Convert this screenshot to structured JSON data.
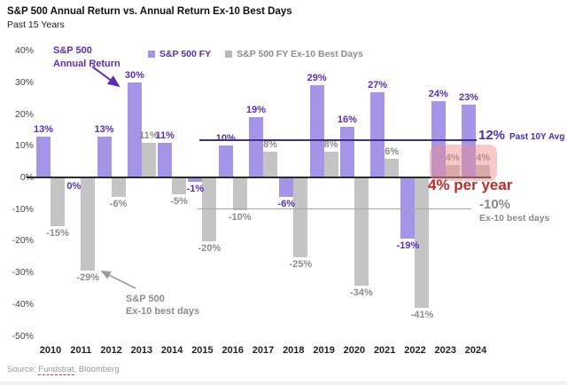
{
  "title": "S&P 500 Annual Return vs. Annual Return Ex-10 Best Days",
  "subtitle": "Past 15 Years",
  "legend": {
    "items": [
      {
        "label": "S&P 500 FY",
        "color": "#a694e8"
      },
      {
        "label": "S&P 500 FY Ex-10 Best Days",
        "color": "#b9b9b9"
      }
    ]
  },
  "chart_data": {
    "type": "bar",
    "categories": [
      "2010",
      "2011",
      "2012",
      "2013",
      "2014",
      "2015",
      "2016",
      "2017",
      "2018",
      "2019",
      "2020",
      "2021",
      "2022",
      "2023",
      "2024"
    ],
    "series": [
      {
        "name": "S&P 500 FY",
        "color": "#a694e8",
        "label_color": "#5c2cb8",
        "values": [
          13,
          0,
          13,
          30,
          11,
          -1,
          10,
          19,
          -6,
          29,
          16,
          27,
          -19,
          24,
          23
        ]
      },
      {
        "name": "S&P 500 FY Ex-10 Best Days",
        "color": "#c4c4c4",
        "label_color": "#8c8c8c",
        "values": [
          -15,
          -29,
          -6,
          11,
          -5,
          -20,
          -10,
          8,
          -25,
          8,
          -34,
          6,
          -41,
          4,
          4
        ]
      }
    ],
    "title": "S&P 500 Annual Return vs. Annual Return Ex-10 Best Days",
    "xlabel": "",
    "ylabel": "",
    "ylim": [
      -50,
      40
    ],
    "yticks": [
      40,
      30,
      20,
      10,
      0,
      -10,
      -20,
      -30,
      -40,
      -50
    ],
    "ytick_suffix": "%",
    "grid": false,
    "legend_position": "top",
    "avg_line": {
      "value": 12,
      "label": "12%",
      "sublabel": "Past 10Y Avg",
      "color": "#3e3188"
    },
    "ex10_line": {
      "value": -10,
      "label": "-10%",
      "sublabel": "Ex-10 best days",
      "color": "#a6a6a6"
    }
  },
  "annotations": {
    "sp500": {
      "line1": "S&P 500",
      "line2": "Annual Return"
    },
    "ex10": {
      "line1": "S&P 500",
      "line2": "Ex-10 best days"
    },
    "per_year": "4% per year"
  },
  "colors": {
    "sp500_bar": "#a694e8",
    "ex10_bar": "#c4c4c4",
    "purple_text": "#5c2cb8",
    "avg_line": "#3e3188",
    "red_callout": "#c62828",
    "highlight": "rgba(239,140,140,0.48)"
  },
  "source": {
    "prefix": "Source: ",
    "link": "Fundstrat",
    "suffix": ", Bloomberg"
  }
}
